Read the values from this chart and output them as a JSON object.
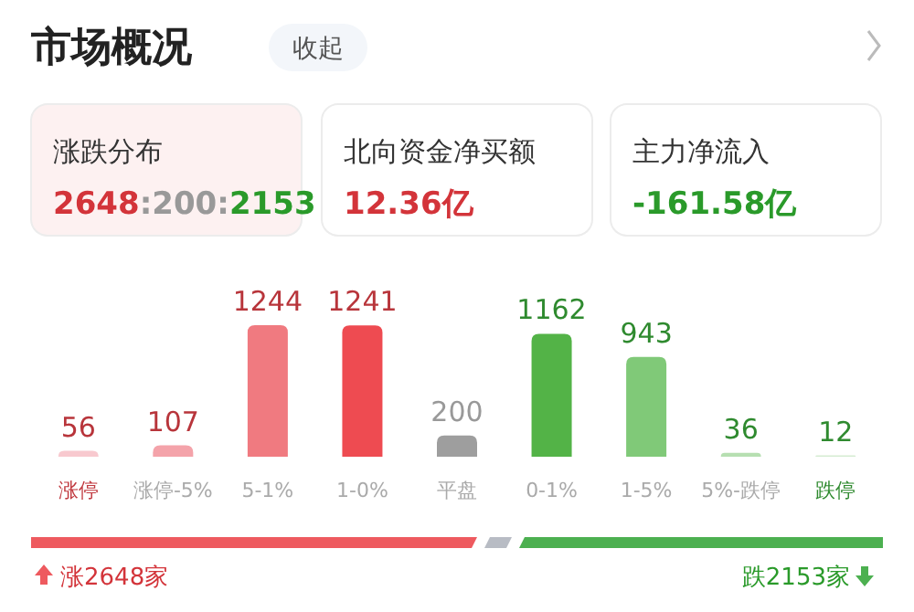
{
  "chart_data": [
    {
      "type": "other",
      "title": "市场概况",
      "annotations": [
        "收起",
        "涨跌分布",
        "2648:200:2153",
        "北向资金净买额",
        "12.36亿",
        "主力净流入",
        "-161.58亿",
        "涨2648家",
        "跌2153家"
      ]
    },
    {
      "type": "bar",
      "categories": [
        "涨停",
        "涨停-5%",
        "5-1%",
        "1-0%",
        "平盘",
        "0-1%",
        "1-5%",
        "5%-跌停",
        "跌停"
      ],
      "values": [
        56,
        107,
        1244,
        1241,
        200,
        1162,
        943,
        36,
        12
      ],
      "colors": [
        "#f8c9cf",
        "#f4a3aa",
        "#f07a80",
        "#ee4b51",
        "#9e9e9e",
        "#53b347",
        "#80c978",
        "#b6dfb1",
        "#d5ecd2"
      ],
      "data_labels": true
    }
  ]
}
